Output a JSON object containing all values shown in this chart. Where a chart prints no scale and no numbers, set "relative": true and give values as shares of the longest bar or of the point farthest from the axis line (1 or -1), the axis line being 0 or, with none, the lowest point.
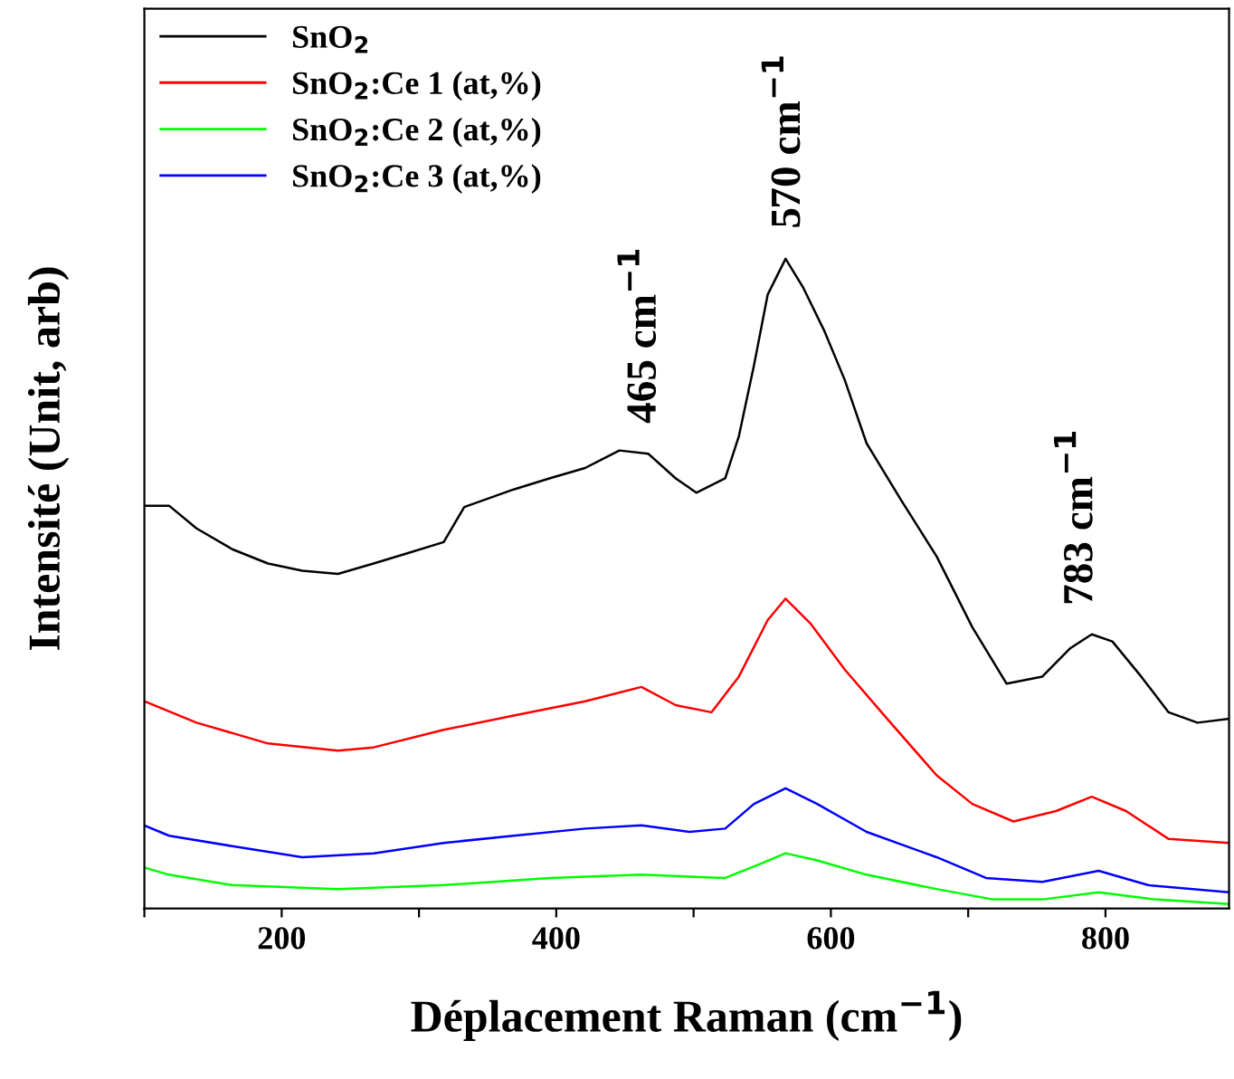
{
  "chart_data": {
    "type": "line",
    "relative": true,
    "xlabel": "Déplacement Raman (cm$^{−1}$)",
    "ylabel": "Intensité (Unit, arb)",
    "xlim": [
      100,
      890
    ],
    "xticks": [
      {
        "value": 100,
        "label": null
      },
      200,
      {
        "value": 300,
        "label": null
      },
      400,
      {
        "value": 500,
        "label": null
      },
      600,
      {
        "value": 700,
        "label": null
      },
      800
    ],
    "grid": false,
    "legend": "top left",
    "marker": "none",
    "line_style": "solid",
    "annotations": [
      {
        "text": "465 cm$^{−1}$",
        "x": 465,
        "y": 0.7
      },
      {
        "text": "570 cm$^{−1}$",
        "x": 570,
        "y": 1.0
      },
      {
        "text": "783 cm$^{−1}$",
        "x": 783,
        "y": 0.42
      }
    ],
    "series": [
      {
        "name": "SnO$_{2}$",
        "color": "#000000",
        "x": [
          100,
          118,
          138,
          164,
          190,
          215,
          241,
          267,
          292,
          318,
          333,
          369,
          395,
          421,
          446,
          467,
          487,
          502,
          523,
          533,
          544,
          554,
          567,
          580,
          595,
          610,
          626,
          651,
          677,
          703,
          728,
          754,
          774,
          790,
          805,
          826,
          846,
          867,
          890
        ],
        "values": [
          0.62,
          0.62,
          0.585,
          0.553,
          0.531,
          0.52,
          0.515,
          0.531,
          0.547,
          0.564,
          0.618,
          0.645,
          0.662,
          0.678,
          0.705,
          0.7,
          0.662,
          0.64,
          0.662,
          0.727,
          0.836,
          0.945,
          1.0,
          0.955,
          0.89,
          0.814,
          0.716,
          0.629,
          0.542,
          0.433,
          0.346,
          0.357,
          0.4,
          0.422,
          0.411,
          0.357,
          0.302,
          0.286,
          0.292
        ]
      },
      {
        "name": "SnO$_{2}$:Ce 1 (at,%)",
        "color": "#ff0000",
        "x": [
          100,
          138,
          190,
          241,
          267,
          318,
          369,
          421,
          462,
          487,
          513,
          533,
          554,
          567,
          585,
          610,
          641,
          677,
          703,
          733,
          764,
          790,
          815,
          846,
          890
        ],
        "values": [
          0.319,
          0.286,
          0.254,
          0.243,
          0.248,
          0.275,
          0.297,
          0.319,
          0.341,
          0.313,
          0.302,
          0.357,
          0.444,
          0.477,
          0.439,
          0.368,
          0.292,
          0.205,
          0.161,
          0.134,
          0.15,
          0.172,
          0.15,
          0.107,
          0.101
        ]
      },
      {
        "name": "SnO$_{2}$:Ce 2 (at,%)",
        "color": "#00ff00",
        "x": [
          100,
          118,
          164,
          241,
          318,
          395,
          462,
          523,
          549,
          567,
          590,
          626,
          677,
          718,
          754,
          795,
          836,
          890
        ],
        "values": [
          0.063,
          0.052,
          0.036,
          0.03,
          0.036,
          0.047,
          0.052,
          0.047,
          0.069,
          0.085,
          0.074,
          0.052,
          0.03,
          0.014,
          0.014,
          0.025,
          0.014,
          0.007
        ]
      },
      {
        "name": "SnO$_{2}$:Ce 3 (at,%)",
        "color": "#0000ff",
        "x": [
          100,
          118,
          164,
          215,
          267,
          318,
          369,
          421,
          462,
          497,
          523,
          544,
          567,
          590,
          626,
          677,
          713,
          754,
          795,
          831,
          890
        ],
        "values": [
          0.128,
          0.112,
          0.096,
          0.079,
          0.085,
          0.101,
          0.112,
          0.123,
          0.128,
          0.118,
          0.123,
          0.161,
          0.185,
          0.161,
          0.118,
          0.079,
          0.047,
          0.041,
          0.058,
          0.036,
          0.025
        ]
      }
    ]
  }
}
